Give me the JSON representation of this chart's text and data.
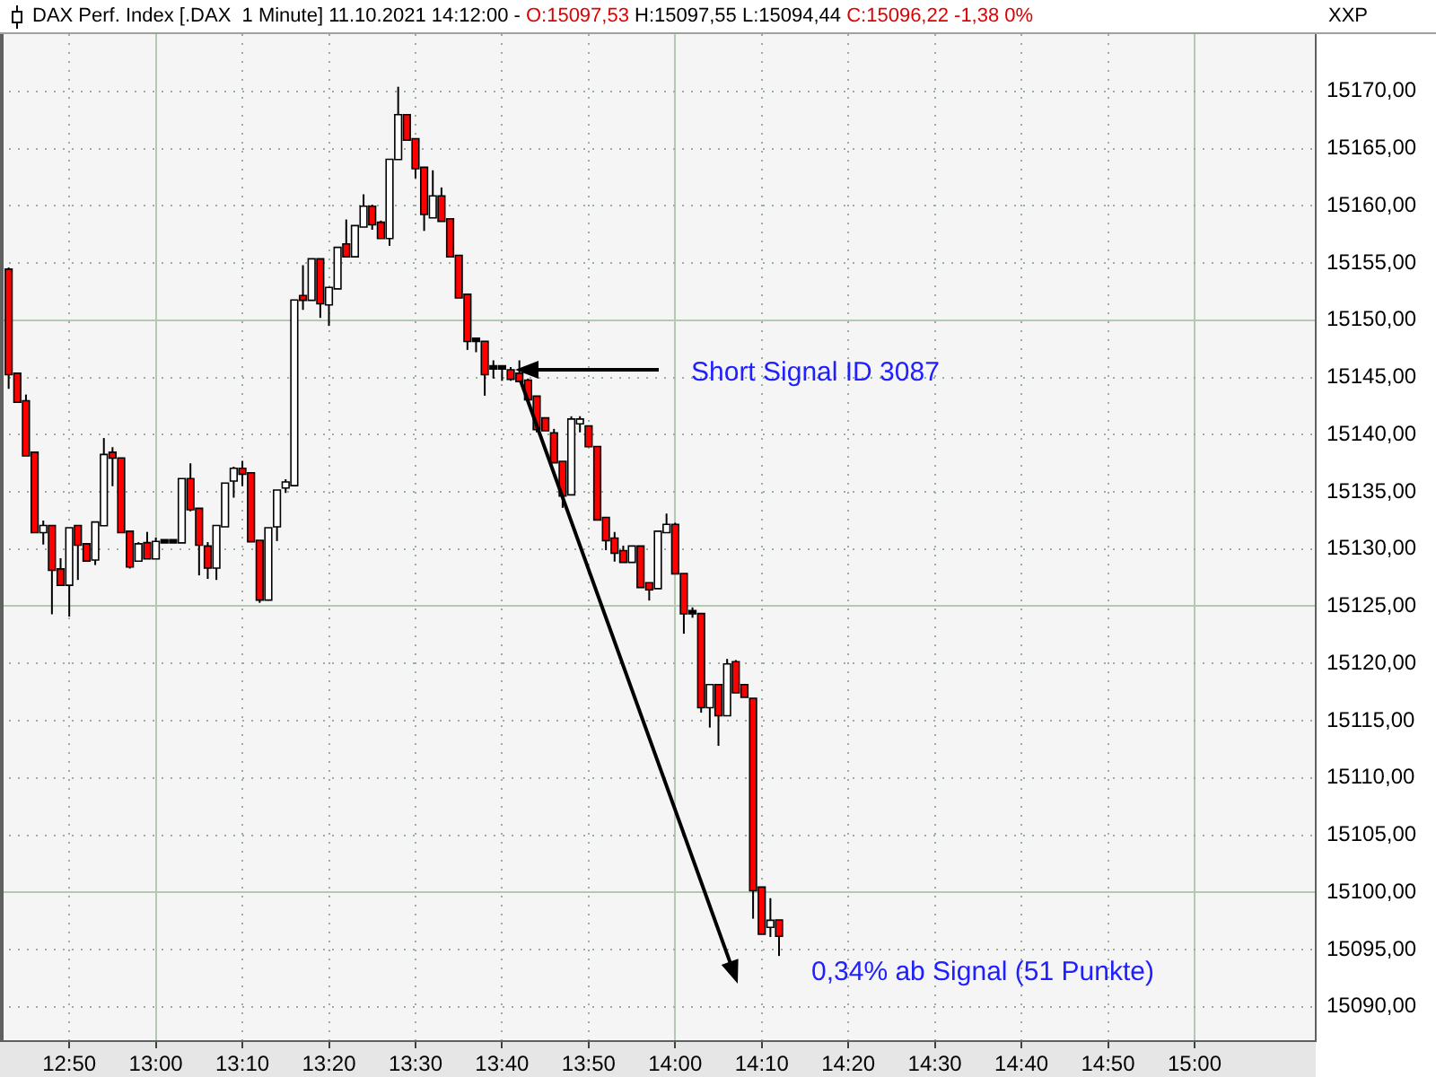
{
  "chart_data": {
    "type": "candlestick",
    "title": "DAX Perf. Index [.DAX  1 Minute] 11.10.2021 14:12:00 -",
    "subtitle": "O:15097,53 H:15097,55 L:15094,44 C:15096,22 -1,38 0%",
    "ylabel": "XXP",
    "annotations": [
      "Short Signal ID 3087",
      "0,34% ab Signal (51 Punkte)"
    ],
    "x": [
      "2021-10-11T12:43",
      "2021-10-11T12:44",
      "2021-10-11T12:45",
      "2021-10-11T12:46",
      "2021-10-11T12:47",
      "2021-10-11T12:48",
      "2021-10-11T12:49",
      "2021-10-11T12:50",
      "2021-10-11T12:51",
      "2021-10-11T12:52",
      "2021-10-11T12:53",
      "2021-10-11T12:54",
      "2021-10-11T12:55",
      "2021-10-11T12:56",
      "2021-10-11T12:57",
      "2021-10-11T12:58",
      "2021-10-11T12:59",
      "2021-10-11T13:00",
      "2021-10-11T13:01",
      "2021-10-11T13:02",
      "2021-10-11T13:03",
      "2021-10-11T13:04",
      "2021-10-11T13:05",
      "2021-10-11T13:06",
      "2021-10-11T13:07",
      "2021-10-11T13:08",
      "2021-10-11T13:09",
      "2021-10-11T13:10",
      "2021-10-11T13:11",
      "2021-10-11T13:12",
      "2021-10-11T13:13",
      "2021-10-11T13:14",
      "2021-10-11T13:15",
      "2021-10-11T13:16",
      "2021-10-11T13:17",
      "2021-10-11T13:18",
      "2021-10-11T13:19",
      "2021-10-11T13:20",
      "2021-10-11T13:21",
      "2021-10-11T13:22",
      "2021-10-11T13:23",
      "2021-10-11T13:24",
      "2021-10-11T13:25",
      "2021-10-11T13:26",
      "2021-10-11T13:27",
      "2021-10-11T13:28",
      "2021-10-11T13:29",
      "2021-10-11T13:30",
      "2021-10-11T13:31",
      "2021-10-11T13:32",
      "2021-10-11T13:33",
      "2021-10-11T13:34",
      "2021-10-11T13:35",
      "2021-10-11T13:36",
      "2021-10-11T13:37",
      "2021-10-11T13:38",
      "2021-10-11T13:39",
      "2021-10-11T13:40",
      "2021-10-11T13:41",
      "2021-10-11T13:42",
      "2021-10-11T13:43",
      "2021-10-11T13:44",
      "2021-10-11T13:45",
      "2021-10-11T13:46",
      "2021-10-11T13:47",
      "2021-10-11T13:48",
      "2021-10-11T13:49",
      "2021-10-11T13:50",
      "2021-10-11T13:51",
      "2021-10-11T13:52",
      "2021-10-11T13:53",
      "2021-10-11T13:54",
      "2021-10-11T13:55",
      "2021-10-11T13:56",
      "2021-10-11T13:57",
      "2021-10-11T13:58",
      "2021-10-11T13:59",
      "2021-10-11T14:00",
      "2021-10-11T14:01",
      "2021-10-11T14:02",
      "2021-10-11T14:03",
      "2021-10-11T14:04",
      "2021-10-11T14:05",
      "2021-10-11T14:06",
      "2021-10-11T14:07",
      "2021-10-11T14:08",
      "2021-10-11T14:09",
      "2021-10-11T14:10",
      "2021-10-11T14:11",
      "2021-10-11T14:12"
    ],
    "ohlc": [
      [
        15154.4,
        15154.6,
        15144.0,
        15145.3
      ],
      [
        15145.3,
        15145.3,
        15142.8,
        15142.9
      ],
      [
        15142.9,
        15143.5,
        15138.2,
        15138.2
      ],
      [
        15138.4,
        15138.4,
        15131.5,
        15131.5
      ],
      [
        15131.5,
        15132.5,
        15130.4,
        15132.0
      ],
      [
        15132.0,
        15132.0,
        15124.3,
        15128.2
      ],
      [
        15128.2,
        15129.2,
        15126.9,
        15126.9
      ],
      [
        15126.9,
        15131.8,
        15124.1,
        15131.8
      ],
      [
        15132.0,
        15132.0,
        15127.3,
        15130.4
      ],
      [
        15130.4,
        15130.4,
        15129.0,
        15129.0
      ],
      [
        15129.1,
        15132.3,
        15128.6,
        15132.3
      ],
      [
        15132.1,
        15139.7,
        15132.1,
        15138.2
      ],
      [
        15138.4,
        15138.9,
        15135.5,
        15138.0
      ],
      [
        15137.9,
        15137.9,
        15131.5,
        15131.5
      ],
      [
        15131.5,
        15131.5,
        15128.3,
        15128.5
      ],
      [
        15129.0,
        15130.6,
        15129.0,
        15130.4
      ],
      [
        15130.5,
        15131.5,
        15129.2,
        15129.2
      ],
      [
        15129.2,
        15131.0,
        15129.2,
        15130.6
      ],
      [
        15130.6,
        15130.6,
        15130.6,
        15130.6
      ],
      [
        15130.6,
        15130.6,
        15130.6,
        15130.6
      ],
      [
        15130.6,
        15136.1,
        15130.6,
        15136.1
      ],
      [
        15136.1,
        15137.5,
        15133.3,
        15133.5
      ],
      [
        15133.5,
        15133.5,
        15127.7,
        15130.4
      ],
      [
        15130.2,
        15130.6,
        15127.4,
        15128.4
      ],
      [
        15128.4,
        15132.0,
        15127.3,
        15132.0
      ],
      [
        15132.0,
        15135.7,
        15132.0,
        15135.7
      ],
      [
        15136.0,
        15137.2,
        15134.5,
        15137.0
      ],
      [
        15137.0,
        15137.7,
        15135.5,
        15136.6
      ],
      [
        15136.6,
        15136.6,
        15130.7,
        15130.7
      ],
      [
        15130.7,
        15130.7,
        15125.3,
        15125.6
      ],
      [
        15125.6,
        15131.8,
        15125.6,
        15131.8
      ],
      [
        15132.0,
        15135.1,
        15130.7,
        15135.1
      ],
      [
        15135.4,
        15136.1,
        15134.9,
        15135.8
      ],
      [
        15135.6,
        15151.7,
        15135.6,
        15151.7
      ],
      [
        15152.1,
        15154.8,
        15150.9,
        15151.8
      ],
      [
        15151.8,
        15155.3,
        15151.8,
        15155.3
      ],
      [
        15155.3,
        15155.3,
        15150.2,
        15151.5
      ],
      [
        15151.4,
        15152.8,
        15149.5,
        15152.8
      ],
      [
        15152.8,
        15156.3,
        15152.8,
        15156.3
      ],
      [
        15156.6,
        15158.8,
        15155.6,
        15155.6
      ],
      [
        15155.6,
        15158.2,
        15155.6,
        15158.2
      ],
      [
        15158.2,
        15161.0,
        15158.2,
        15159.9
      ],
      [
        15159.9,
        15160.1,
        15157.9,
        15158.4
      ],
      [
        15158.5,
        15158.7,
        15157.2,
        15157.2
      ],
      [
        15157.2,
        15164.0,
        15156.5,
        15164.0
      ],
      [
        15164.1,
        15170.4,
        15164.1,
        15167.9
      ],
      [
        15167.9,
        15167.9,
        15165.8,
        15165.8
      ],
      [
        15165.8,
        15165.8,
        15162.4,
        15163.3
      ],
      [
        15163.3,
        15163.3,
        15157.8,
        15159.3
      ],
      [
        15159.0,
        15163.1,
        15159.0,
        15160.8
      ],
      [
        15160.8,
        15161.6,
        15158.7,
        15158.7
      ],
      [
        15158.8,
        15158.8,
        15155.6,
        15155.6
      ],
      [
        15155.6,
        15155.6,
        15152.0,
        15152.0
      ],
      [
        15152.2,
        15152.2,
        15147.4,
        15148.2
      ],
      [
        15148.2,
        15148.2,
        15147.2,
        15148.2
      ],
      [
        15148.1,
        15148.1,
        15143.4,
        15145.3
      ],
      [
        15145.8,
        15146.5,
        15144.9,
        15145.8
      ],
      [
        15145.8,
        15146.0,
        15144.7,
        15145.8
      ],
      [
        15145.6,
        15145.9,
        15144.7,
        15144.9
      ],
      [
        15145.3,
        15146.5,
        15144.6,
        15144.7
      ],
      [
        15144.7,
        15144.9,
        15143.1,
        15143.1
      ],
      [
        15143.3,
        15143.3,
        15140.2,
        15140.5
      ],
      [
        15141.4,
        15141.5,
        15140.4,
        15140.4
      ],
      [
        15140.1,
        15140.5,
        15137.6,
        15137.6
      ],
      [
        15137.6,
        15137.6,
        15133.6,
        15134.7
      ],
      [
        15134.8,
        15141.6,
        15134.8,
        15141.3
      ],
      [
        15141.0,
        15141.6,
        15140.2,
        15141.3
      ],
      [
        15140.7,
        15140.7,
        15139.0,
        15139.0
      ],
      [
        15138.9,
        15138.9,
        15132.6,
        15132.6
      ],
      [
        15132.7,
        15132.7,
        15129.9,
        15130.8
      ],
      [
        15130.9,
        15131.5,
        15128.9,
        15129.7
      ],
      [
        15129.8,
        15130.3,
        15128.9,
        15128.9
      ],
      [
        15128.9,
        15130.2,
        15128.9,
        15130.2
      ],
      [
        15130.2,
        15130.2,
        15126.7,
        15126.7
      ],
      [
        15127.0,
        15127.0,
        15125.5,
        15126.5
      ],
      [
        15126.6,
        15131.5,
        15126.6,
        15131.5
      ],
      [
        15131.5,
        15133.1,
        15131.5,
        15132.1
      ],
      [
        15132.1,
        15132.3,
        15127.9,
        15127.9
      ],
      [
        15127.8,
        15127.8,
        15122.6,
        15124.4
      ],
      [
        15124.4,
        15124.9,
        15124.0,
        15124.4
      ],
      [
        15124.3,
        15124.3,
        15115.7,
        15116.2
      ],
      [
        15116.2,
        15118.1,
        15114.4,
        15118.1
      ],
      [
        15118.1,
        15118.1,
        15112.8,
        15115.5
      ],
      [
        15115.5,
        15120.4,
        15115.5,
        15119.9
      ],
      [
        15120.1,
        15120.3,
        15117.5,
        15117.5
      ],
      [
        15118.1,
        15118.1,
        15117.1,
        15117.1
      ],
      [
        15116.9,
        15116.9,
        15097.7,
        15100.2
      ],
      [
        15100.4,
        15100.4,
        15096.4,
        15096.4
      ],
      [
        15097.0,
        15099.5,
        15096.1,
        15097.5
      ],
      [
        15097.53,
        15097.55,
        15094.44,
        15096.22
      ]
    ],
    "colors": [
      "#ff0000",
      "#ff0000",
      "#ff0000",
      "#ff0000",
      "#ffffff",
      "#ff0000",
      "#ff0000",
      "#ffffff",
      "#ff0000",
      "#ff0000",
      "#ffffff",
      "#ffffff",
      "#ff0000",
      "#ff0000",
      "#ff0000",
      "#ffffff",
      "#ff0000",
      "#ffffff",
      "#000000",
      "#000000",
      "#ffffff",
      "#ff0000",
      "#ff0000",
      "#ff0000",
      "#ffffff",
      "#ffffff",
      "#ffffff",
      "#ff0000",
      "#ff0000",
      "#ff0000",
      "#ffffff",
      "#ffffff",
      "#ffffff",
      "#ffffff",
      "#ff0000",
      "#ffffff",
      "#ff0000",
      "#ffffff",
      "#ffffff",
      "#ff0000",
      "#ffffff",
      "#ffffff",
      "#ff0000",
      "#ff0000",
      "#ffffff",
      "#ffffff",
      "#ff0000",
      "#ff0000",
      "#ff0000",
      "#ffffff",
      "#ff0000",
      "#ff0000",
      "#ff0000",
      "#ff0000",
      "#000000",
      "#ff0000",
      "#000000",
      "#000000",
      "#ff0000",
      "#ff0000",
      "#ff0000",
      "#ff0000",
      "#ff0000",
      "#ff0000",
      "#ff0000",
      "#ffffff",
      "#ffffff",
      "#ff0000",
      "#ff0000",
      "#ff0000",
      "#ff0000",
      "#ff0000",
      "#ffffff",
      "#ff0000",
      "#ff0000",
      "#ffffff",
      "#ffffff",
      "#ff0000",
      "#ff0000",
      "#000000",
      "#ff0000",
      "#ffffff",
      "#ff0000",
      "#ffffff",
      "#ff0000",
      "#ff0000",
      "#ff0000",
      "#ff0000",
      "#ffffff",
      "#ff0000"
    ],
    "xlim": [
      "2021-10-11T12:42",
      "2021-10-11T15:14"
    ],
    "xticks": [
      {
        "value": "2021-10-11T12:50",
        "label": "12:50"
      },
      {
        "value": "2021-10-11T13:00",
        "label": "13:00"
      },
      {
        "value": "2021-10-11T13:10",
        "label": "13:10"
      },
      {
        "value": "2021-10-11T13:20",
        "label": "13:20"
      },
      {
        "value": "2021-10-11T13:30",
        "label": "13:30"
      },
      {
        "value": "2021-10-11T13:40",
        "label": "13:40"
      },
      {
        "value": "2021-10-11T13:50",
        "label": "13:50"
      },
      {
        "value": "2021-10-11T14:00",
        "label": "14:00"
      },
      {
        "value": "2021-10-11T14:10",
        "label": "14:10"
      },
      {
        "value": "2021-10-11T14:20",
        "label": "14:20"
      },
      {
        "value": "2021-10-11T14:30",
        "label": "14:30"
      },
      {
        "value": "2021-10-11T14:40",
        "label": "14:40"
      },
      {
        "value": "2021-10-11T14:50",
        "label": "14:50"
      },
      {
        "value": "2021-10-11T15:00",
        "label": "15:00"
      }
    ],
    "ylim": [
      15087,
      15175
    ],
    "yticks": [
      {
        "value": 15090,
        "label": "15090,00"
      },
      {
        "value": 15095,
        "label": "15095,00"
      },
      {
        "value": 15100,
        "label": "15100,00"
      },
      {
        "value": 15105,
        "label": "15105,00"
      },
      {
        "value": 15110,
        "label": "15110,00"
      },
      {
        "value": 15115,
        "label": "15115,00"
      },
      {
        "value": 15120,
        "label": "15120,00"
      },
      {
        "value": 15125,
        "label": "15125,00"
      },
      {
        "value": 15130,
        "label": "15130,00"
      },
      {
        "value": 15135,
        "label": "15135,00"
      },
      {
        "value": 15140,
        "label": "15140,00"
      },
      {
        "value": 15145,
        "label": "15145,00"
      },
      {
        "value": 15150,
        "label": "15150,00"
      },
      {
        "value": 15155,
        "label": "15155,00"
      },
      {
        "value": 15160,
        "label": "15160,00"
      },
      {
        "value": 15165,
        "label": "15165,00"
      },
      {
        "value": 15170,
        "label": "15170,00"
      }
    ],
    "grid": true
  }
}
